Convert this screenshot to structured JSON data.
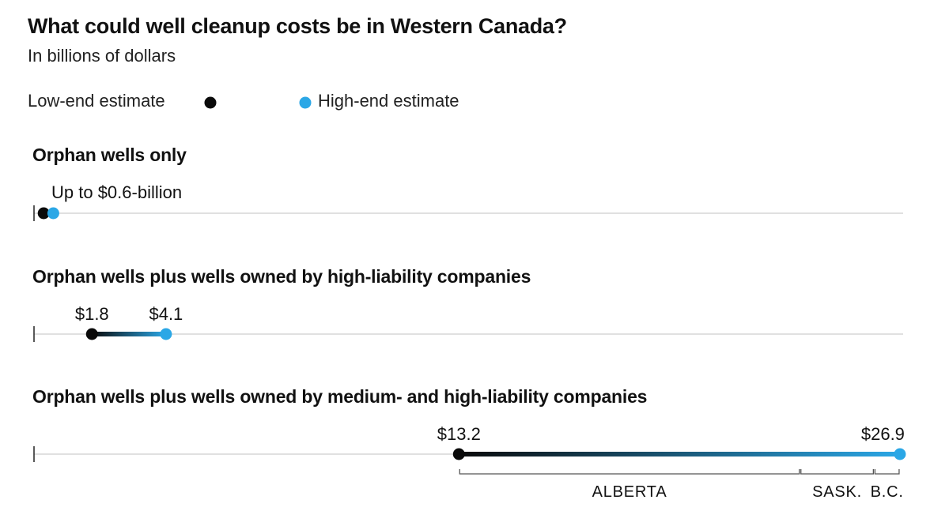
{
  "title": "What could well cleanup costs be in Western Canada?",
  "subtitle": "In billions of dollars",
  "legend": {
    "low_label": "Low-end estimate",
    "high_label": "High-end estimate"
  },
  "colors": {
    "low": "#0a0a0a",
    "high": "#2ba7e6",
    "axis": "#d6d6d6",
    "tick": "#222222",
    "bracket": "#555555"
  },
  "chart_data": {
    "type": "range",
    "title": "What could well cleanup costs be in Western Canada?",
    "subtitle": "In billions of dollars",
    "unit": "billions of dollars",
    "series_legend": [
      "Low-end estimate",
      "High-end estimate"
    ],
    "grid": false,
    "legend_position": "top-left",
    "rows": [
      {
        "name": "Orphan wells only",
        "low": 0.3,
        "high": 0.6,
        "annotation": "Up to $0.6-billion",
        "low_label": "",
        "high_label": ""
      },
      {
        "name": "Orphan wells plus wells owned by high-liability companies",
        "low": 1.8,
        "high": 4.1,
        "low_label": "$1.8",
        "high_label": "$4.1"
      },
      {
        "name": "Orphan wells plus wells owned by medium- and high-liability companies",
        "low": 13.2,
        "high": 26.9,
        "low_label": "$13.2",
        "high_label": "$26.9",
        "breakdown": [
          {
            "label": "ALBERTA",
            "from": 13.2,
            "to": 23.8
          },
          {
            "label": "SASK.",
            "from": 23.8,
            "to": 26.1
          },
          {
            "label": "B.C.",
            "from": 26.1,
            "to": 26.9
          }
        ]
      }
    ]
  }
}
